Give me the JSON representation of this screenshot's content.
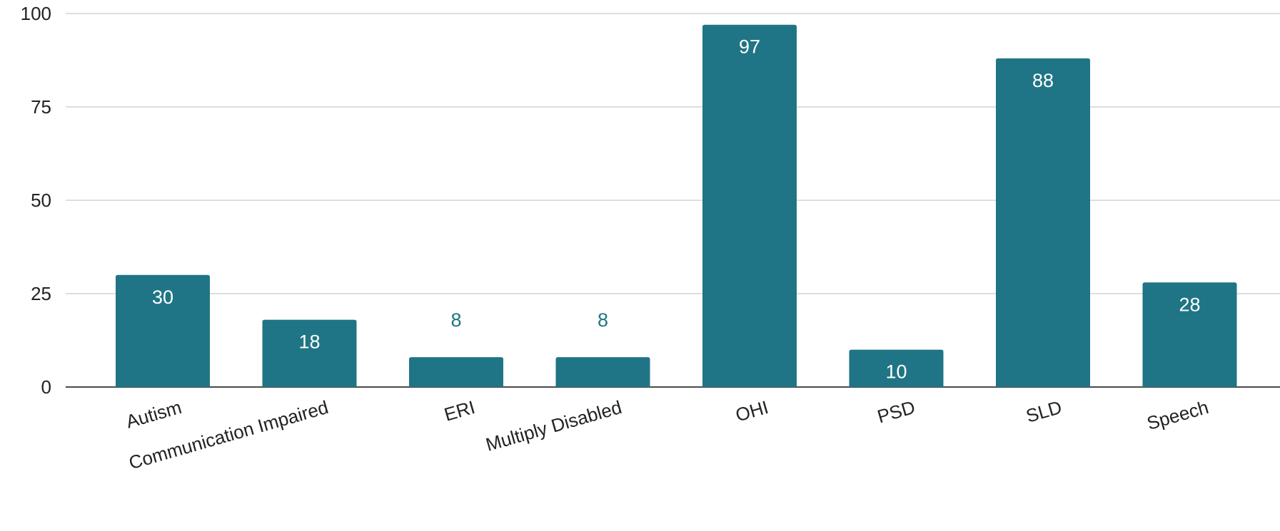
{
  "chart_data": {
    "type": "bar",
    "title": "",
    "xlabel": "",
    "ylabel": "",
    "ylim": [
      0,
      100
    ],
    "yticks": [
      0,
      25,
      50,
      75,
      100
    ],
    "grid": true,
    "legend": "none",
    "bar_color": "#1f7585",
    "label_inside_color": "#ffffff",
    "label_outside_color": "#1f7585",
    "categories": [
      "Autism",
      "Communication Impaired",
      "ERI",
      "Multiply Disabled",
      "OHI",
      "PSD",
      "SLD",
      "Speech"
    ],
    "values": [
      30,
      18,
      8,
      8,
      97,
      10,
      88,
      28
    ],
    "data_labels": [
      "30",
      "18",
      "8",
      "8",
      "97",
      "10",
      "88",
      "28"
    ]
  }
}
